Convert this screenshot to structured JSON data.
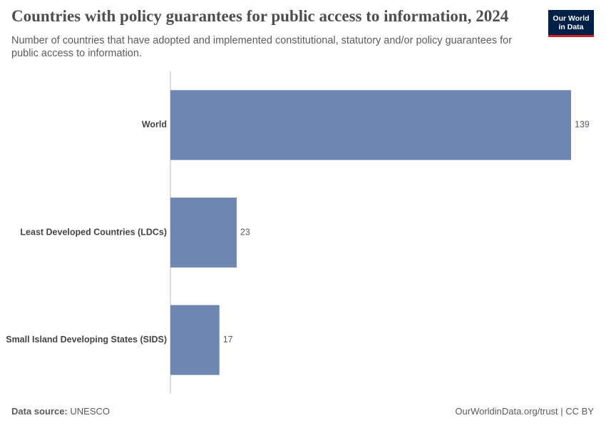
{
  "chart_data": {
    "type": "bar",
    "orientation": "horizontal",
    "title": "Countries with policy guarantees for public access to information, 2024",
    "subtitle": "Number of countries that have adopted and implemented constitutional, statutory and/or policy guarantees for public access to information.",
    "categories": [
      "World",
      "Least Developed Countries (LDCs)",
      "Small Island Developing States (SIDS)"
    ],
    "values": [
      139,
      23,
      17
    ],
    "color": "#6d87b0"
  },
  "logo": {
    "line1": "Our World",
    "line2": "in Data"
  },
  "footer": {
    "source_label": "Data source:",
    "source": "UNESCO",
    "license": "OurWorldinData.org/trust | CC BY"
  }
}
